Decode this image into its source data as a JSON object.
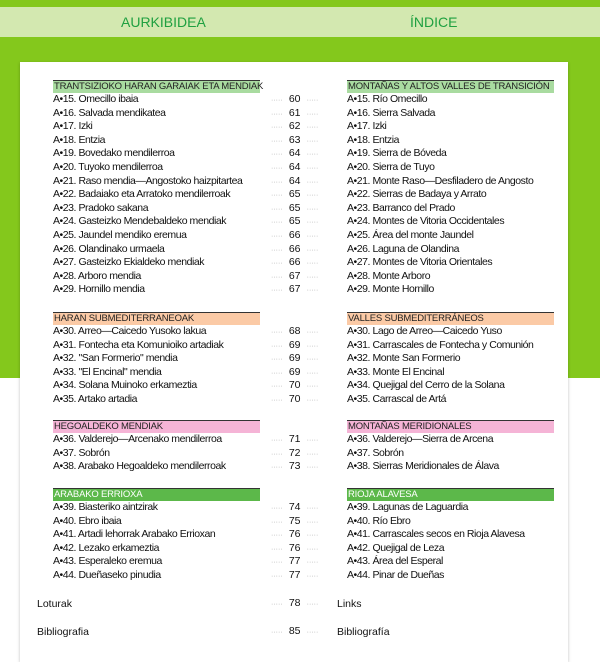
{
  "header": {
    "left_title": "AURKIBIDEA",
    "right_title": "ÍNDICE"
  },
  "colors": {
    "frame_green": "#84c81c",
    "title_band": "#d3e8b0",
    "title_text": "#1fa040"
  },
  "sections": [
    {
      "eu": "TRANTSIZIOKO HARAN GARAIAK ETA MENDIAK",
      "es": "MONTAÑAS Y ALTOS VALLES DE TRANSICIÓN",
      "color": "#a9dba0",
      "text_color": "#222",
      "items": [
        {
          "eu": "A•15. Omecillo ibaia",
          "page": "60",
          "es": "A•15. Río Omecillo"
        },
        {
          "eu": "A•16. Salvada mendikatea",
          "page": "61",
          "es": "A•16. Sierra Salvada"
        },
        {
          "eu": "A•17. Izki",
          "page": "62",
          "es": "A•17. Izki"
        },
        {
          "eu": "A•18. Entzia",
          "page": "63",
          "es": "A•18. Entzia"
        },
        {
          "eu": "A•19. Bovedako mendilerroa",
          "page": "64",
          "es": "A•19. Sierra de Bóveda"
        },
        {
          "eu": "A•20. Tuyoko mendilerroa",
          "page": "64",
          "es": "A•20. Sierra de Tuyo"
        },
        {
          "eu": "A•21. Raso mendia—Angostoko haizpitartea",
          "page": "64",
          "es": "A•21. Monte Raso—Desfiladero de Angosto"
        },
        {
          "eu": "A•22. Badaiako eta Arratoko mendilerroak",
          "page": "65",
          "es": "A•22. Sierras de Badaya y Arrato"
        },
        {
          "eu": "A•23. Pradoko sakana",
          "page": "65",
          "es": "A•23. Barranco del Prado"
        },
        {
          "eu": "A•24. Gasteizko Mendebaldeko mendiak",
          "page": "65",
          "es": "A•24. Montes de Vitoria Occidentales"
        },
        {
          "eu": "A•25. Jaundel mendiko eremua",
          "page": "66",
          "es": "A•25. Área del monte Jaundel"
        },
        {
          "eu": "A•26. Olandinako urmaela",
          "page": "66",
          "es": "A•26. Laguna de Olandina"
        },
        {
          "eu": "A•27. Gasteizko Ekialdeko mendiak",
          "page": "66",
          "es": "A•27. Montes de Vitoria Orientales"
        },
        {
          "eu": "A•28. Arboro mendia",
          "page": "67",
          "es": "A•28. Monte Arboro"
        },
        {
          "eu": "A•29. Hornillo mendia",
          "page": "67",
          "es": "A•29. Monte Hornillo"
        }
      ]
    },
    {
      "eu": "HARAN SUBMEDITERRANEOAK",
      "es": "VALLES SUBMEDITERRÁNEOS",
      "color": "#fbcaa6",
      "text_color": "#222",
      "items": [
        {
          "eu": "A•30. Arreo—Caicedo Yusoko lakua",
          "page": "68",
          "es": "A•30. Lago de Arreo—Caicedo Yuso"
        },
        {
          "eu": "A•31. Fontecha eta Komunioiko artadiak",
          "page": "69",
          "es": "A•31. Carrascales de Fontecha y Comunión"
        },
        {
          "eu": "A•32. \"San Formerio\" mendia",
          "page": "69",
          "es": "A•32. Monte San Formerio"
        },
        {
          "eu": "A•33. \"El Encinal\" mendia",
          "page": "69",
          "es": "A•33. Monte El Encinal"
        },
        {
          "eu": "A•34. Solana Muinoko erkameztia",
          "page": "70",
          "es": "A•34. Quejigal del Cerro de la Solana"
        },
        {
          "eu": "A•35. Artako artadia",
          "page": "70",
          "es": "A•35. Carrascal de Artá"
        }
      ]
    },
    {
      "eu": "HEGOALDEKO MENDIAK",
      "es": "MONTAÑAS MERIDIONALES",
      "color": "#f5b4d6",
      "text_color": "#222",
      "items": [
        {
          "eu": "A•36. Valderejo—Arcenako mendilerroa",
          "page": "71",
          "es": "A•36. Valderejo—Sierra de Arcena"
        },
        {
          "eu": "A•37. Sobrón",
          "page": "72",
          "es": "A•37. Sobrón"
        },
        {
          "eu": "A•38. Arabako Hegoaldeko mendilerroak",
          "page": "73",
          "es": "A•38. Sierras Meridionales de Álava"
        }
      ]
    },
    {
      "eu": "ARABAKO ERRIOXA",
      "es": "RIOJA ALAVESA",
      "color": "#5cb84a",
      "text_color": "#ffffff",
      "items": [
        {
          "eu": "A•39. Biasteriko aintzirak",
          "page": "74",
          "es": "A•39. Lagunas de Laguardia"
        },
        {
          "eu": "A•40. Ebro ibaia",
          "page": "75",
          "es": "A•40. Río Ebro"
        },
        {
          "eu": "A•41. Artadi lehorrak Arabako Errioxan",
          "page": "76",
          "es": "A•41. Carrascales secos en Rioja Alavesa"
        },
        {
          "eu": "A•42. Lezako erkameztia",
          "page": "76",
          "es": "A•42. Quejigal de Leza"
        },
        {
          "eu": "A•43. Esperaleko eremua",
          "page": "77",
          "es": "A•43. Área del Esperal"
        },
        {
          "eu": "A•44. Dueñaseko pinudia",
          "page": "77",
          "es": "A•44. Pinar de Dueñas"
        }
      ]
    }
  ],
  "extras": [
    {
      "eu": "Loturak",
      "page": "78",
      "es": "Links"
    },
    {
      "eu": "Bibliografia",
      "page": "85",
      "es": "Bibliografía"
    }
  ],
  "leader": "·····"
}
